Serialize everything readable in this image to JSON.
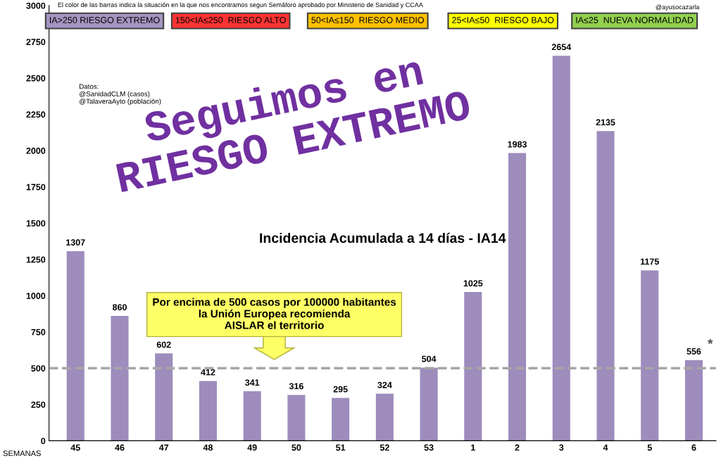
{
  "chart_data": {
    "type": "bar",
    "title": "Incidencia Acumulada a 14 días - IA14",
    "xlabel": "SEMANAS",
    "categories": [
      "45",
      "46",
      "47",
      "48",
      "49",
      "50",
      "51",
      "52",
      "53",
      "1",
      "2",
      "3",
      "4",
      "5",
      "6"
    ],
    "values": [
      1307,
      860,
      602,
      412,
      341,
      316,
      295,
      324,
      504,
      1025,
      1983,
      2654,
      2135,
      1175,
      556
    ],
    "color": "#9e8cbc",
    "data_labels": true,
    "grid": false,
    "legend": false,
    "ylim": [
      0,
      3000
    ],
    "yticks": [
      0,
      250,
      500,
      750,
      1000,
      1250,
      1500,
      1750,
      2000,
      2250,
      2500,
      2750,
      3000
    ],
    "ref_lines": [
      {
        "axis": "y",
        "value": 500,
        "color": "#a6a6a6",
        "line_style": "dashed"
      }
    ],
    "annotations": [
      "El color de las barras indica la situación en la que nos encontramos segun Semáforo aprobado por Ministerio de Sanidad y CCAA",
      "@ayusocazarla",
      "IA>250 RIESGO EXTREMO",
      "150<IA≤250  RIESGO ALTO",
      "50<IA≤150  RIESGO MEDIO",
      "25<IA≤50  RIESGO BAJO",
      "IA≤25  NUEVA NORMALIDAD",
      "Datos:\n@SanidadCLM (casos)\n@TalaveraAyto (población)",
      "Seguimos en\nRIESGO EXTREMO",
      "Por encima de 500 casos por 100000 habitantes\nla Unión Europea recomienda\nAISLAR el territorio",
      {
        "text": "*",
        "x": "6",
        "y": 556
      }
    ]
  }
}
